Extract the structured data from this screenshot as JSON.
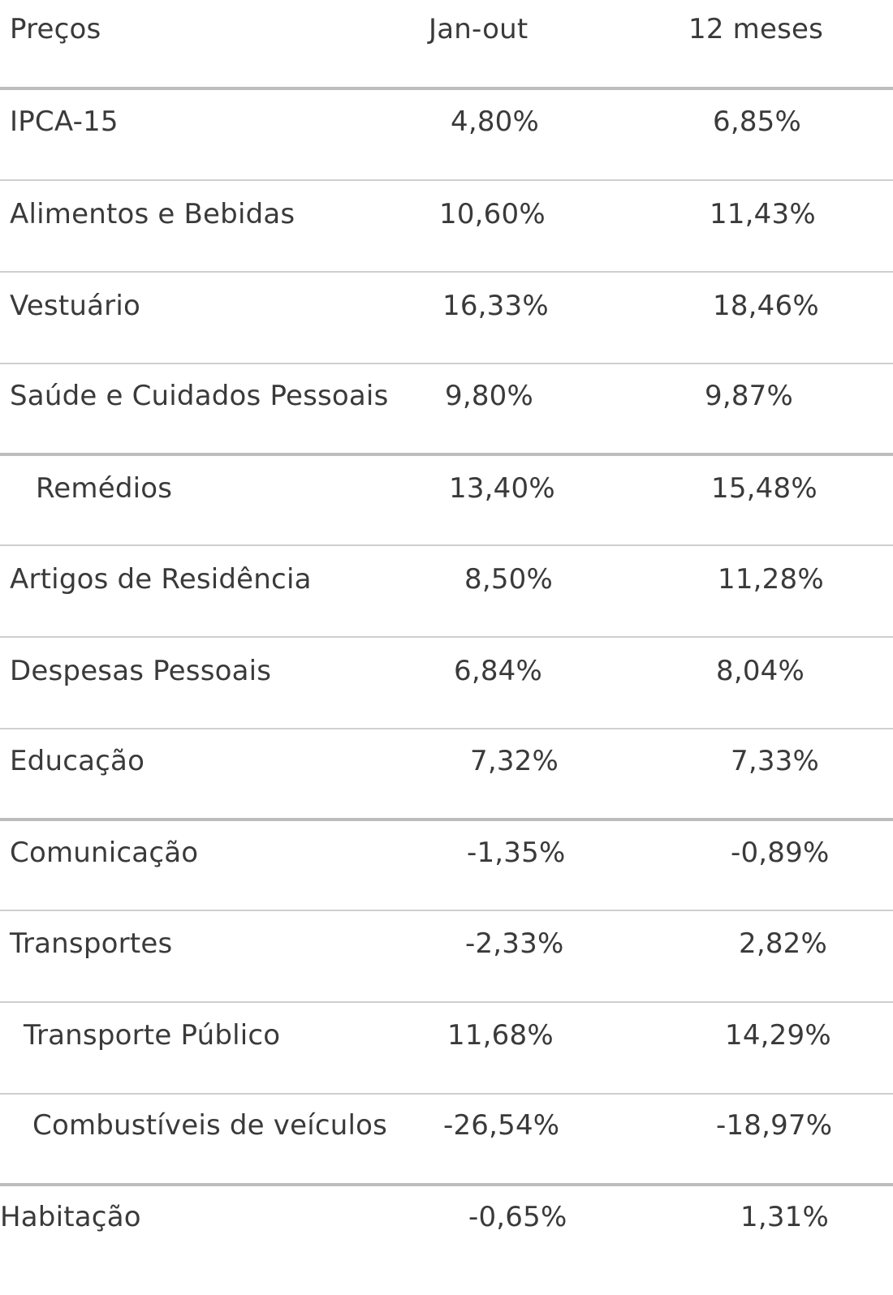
{
  "table": {
    "header": {
      "col1": "Preços",
      "col2": "Jan-out",
      "col3": "12 meses"
    },
    "rows": [
      {
        "label": "IPCA-15",
        "jan_out": "4,80%",
        "doze_meses": "6,85%"
      },
      {
        "label": "Alimentos e Bebidas",
        "jan_out": "10,60%",
        "doze_meses": "11,43%"
      },
      {
        "label": "Vestuário",
        "jan_out": "16,33%",
        "doze_meses": "18,46%"
      },
      {
        "label": "Saúde e Cuidados Pessoais",
        "jan_out": "9,80%",
        "doze_meses": "9,87%"
      },
      {
        "label": "Remédios",
        "jan_out": "13,40%",
        "doze_meses": "15,48%"
      },
      {
        "label": "Artigos de Residência",
        "jan_out": "8,50%",
        "doze_meses": "11,28%"
      },
      {
        "label": "Despesas Pessoais",
        "jan_out": "6,84%",
        "doze_meses": "8,04%"
      },
      {
        "label": "Educação",
        "jan_out": "7,32%",
        "doze_meses": "7,33%"
      },
      {
        "label": "Comunicação",
        "jan_out": "-1,35%",
        "doze_meses": "-0,89%"
      },
      {
        "label": "Transportes",
        "jan_out": "-2,33%",
        "doze_meses": "2,82%"
      },
      {
        "label": "Transporte Público",
        "jan_out": "11,68%",
        "doze_meses": "14,29%"
      },
      {
        "label": "Combustíveis de veículos",
        "jan_out": "-26,54%",
        "doze_meses": "-18,97%"
      },
      {
        "label": "Habitação",
        "jan_out": "-0,65%",
        "doze_meses": "1,31%"
      }
    ]
  }
}
